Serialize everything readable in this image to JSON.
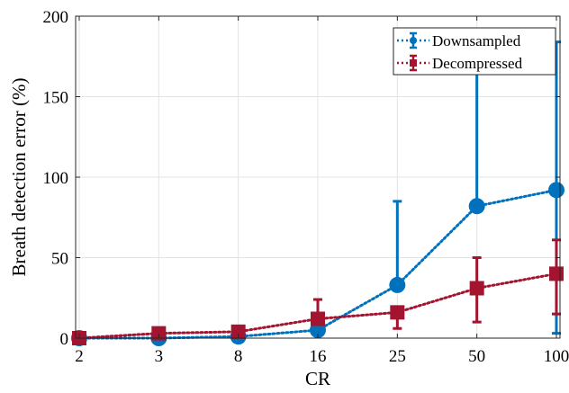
{
  "chart_data": {
    "type": "line",
    "title": "",
    "xlabel": "CR",
    "ylabel": "Breath detection error (%)",
    "categories": [
      "2",
      "3",
      "8",
      "16",
      "25",
      "50",
      "100"
    ],
    "ylim": [
      0,
      200
    ],
    "yticks": [
      0,
      50,
      100,
      150,
      200
    ],
    "grid": true,
    "legend_position": "top-right",
    "series": [
      {
        "name": "Downsampled",
        "color": "#0072BD",
        "marker": "circle",
        "linestyle": "dotted",
        "values": [
          0,
          0,
          1,
          5,
          33,
          82,
          92
        ],
        "error_low": [
          0,
          0,
          0,
          0,
          0,
          0,
          89
        ],
        "error_high": [
          0,
          0,
          0,
          0,
          52,
          120,
          93
        ]
      },
      {
        "name": "Decompressed",
        "color": "#A2142F",
        "marker": "square",
        "linestyle": "dotted",
        "values": [
          0,
          3,
          4,
          12,
          16,
          31,
          40
        ],
        "error_low": [
          0,
          0,
          0,
          0,
          10,
          21,
          25
        ],
        "error_high": [
          0,
          0,
          0,
          12,
          0,
          19,
          21
        ]
      }
    ]
  }
}
